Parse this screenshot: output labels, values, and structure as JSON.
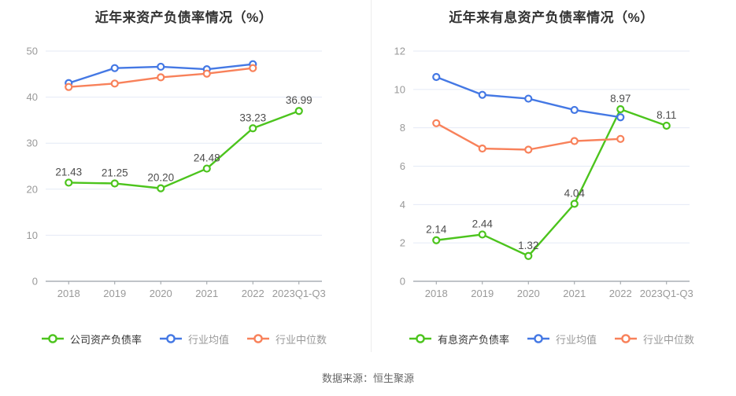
{
  "page": {
    "footer": "数据来源：恒生聚源",
    "colors": {
      "grid": "#e4eaf6",
      "axis": "#9aa0a6",
      "tick_text": "#999999",
      "label_text": "#4d4d4d",
      "title_text": "#333333",
      "footer_text": "#666666",
      "divider": "#ececec",
      "background": "#ffffff"
    }
  },
  "chart_data": [
    {
      "type": "line",
      "title": "近年来资产负债率情况（%）",
      "categories": [
        "2018",
        "2019",
        "2020",
        "2021",
        "2022",
        "2023Q1-Q3"
      ],
      "ylim": [
        0,
        50
      ],
      "ytick_step": 10,
      "grid": true,
      "legend_position": "bottom",
      "series": [
        {
          "name": "公司资产负债率",
          "color": "#4cc41d",
          "values": [
            21.43,
            21.25,
            20.2,
            24.48,
            33.23,
            36.99
          ],
          "point_labels": [
            "21.43",
            "21.25",
            "20.20",
            "24.48",
            "33.23",
            "36.99"
          ],
          "legend_text_color": "#333333"
        },
        {
          "name": "行业均值",
          "color": "#4478e4",
          "values": [
            43.05,
            46.3,
            46.6,
            46.05,
            47.15
          ],
          "legend_text_color": "#999999"
        },
        {
          "name": "行业中位数",
          "color": "#f8815a",
          "values": [
            42.2,
            42.95,
            44.3,
            45.1,
            46.3
          ],
          "legend_text_color": "#999999"
        }
      ]
    },
    {
      "type": "line",
      "title": "近年来有息资产负债率情况（%）",
      "categories": [
        "2018",
        "2019",
        "2020",
        "2021",
        "2022",
        "2023Q1-Q3"
      ],
      "ylim": [
        0,
        12
      ],
      "ytick_step": 2,
      "grid": true,
      "legend_position": "bottom",
      "series": [
        {
          "name": "有息资产负债率",
          "color": "#4cc41d",
          "values": [
            2.14,
            2.44,
            1.32,
            4.04,
            8.97,
            8.11
          ],
          "point_labels": [
            "2.14",
            "2.44",
            "1.32",
            "4.04",
            "8.97",
            "8.11"
          ],
          "legend_text_color": "#333333"
        },
        {
          "name": "行业均值",
          "color": "#4478e4",
          "values": [
            10.65,
            9.72,
            9.52,
            8.93,
            8.55
          ],
          "legend_text_color": "#999999"
        },
        {
          "name": "行业中位数",
          "color": "#f8815a",
          "values": [
            8.24,
            6.92,
            6.86,
            7.31,
            7.42
          ],
          "legend_text_color": "#999999"
        }
      ]
    }
  ]
}
